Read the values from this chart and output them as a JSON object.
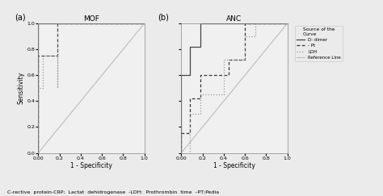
{
  "fig_width": 4.74,
  "fig_height": 2.43,
  "dpi": 100,
  "background_color": "#ebebeb",
  "plot_bg_color": "#f0f0f0",
  "panel_a_title": "MOF",
  "panel_b_title": "ANC",
  "xlabel": "1 - Specificity",
  "ylabel": "Sensitivity",
  "panel_label_a": "(a)",
  "panel_label_b": "(b)",
  "legend_title": "Source of the\nCurve",
  "legend_entries": [
    "D- dimer",
    "- Pt",
    "LDH",
    "Reference Line"
  ],
  "mof_d_dimer_fpr": [
    0.0,
    0.0,
    0.04,
    0.04,
    1.0
  ],
  "mof_d_dimer_tpr": [
    0.0,
    1.0,
    1.0,
    1.0,
    1.0
  ],
  "mof_pt_fpr": [
    0.0,
    0.0,
    0.0,
    0.04,
    0.04,
    0.18,
    0.18,
    1.0
  ],
  "mof_pt_tpr": [
    0.0,
    0.5,
    0.75,
    0.75,
    0.75,
    0.75,
    1.0,
    1.0
  ],
  "mof_ldh_fpr": [
    0.0,
    0.0,
    0.04,
    0.04,
    0.18,
    0.18,
    0.18,
    1.0
  ],
  "mof_ldh_tpr": [
    0.0,
    0.5,
    0.5,
    0.75,
    0.75,
    0.5,
    1.0,
    1.0
  ],
  "anc_d_dimer_fpr": [
    0.0,
    0.0,
    0.0,
    0.08,
    0.08,
    0.18,
    0.18,
    1.0
  ],
  "anc_d_dimer_tpr": [
    0.0,
    0.15,
    0.6,
    0.6,
    0.82,
    0.82,
    1.0,
    1.0
  ],
  "anc_pt_fpr": [
    0.0,
    0.0,
    0.08,
    0.08,
    0.18,
    0.18,
    0.45,
    0.45,
    0.6,
    0.6,
    1.0
  ],
  "anc_pt_tpr": [
    0.0,
    0.15,
    0.15,
    0.42,
    0.42,
    0.6,
    0.6,
    0.72,
    0.72,
    1.0,
    1.0
  ],
  "anc_ldh_fpr": [
    0.0,
    0.08,
    0.08,
    0.18,
    0.18,
    0.4,
    0.4,
    0.6,
    0.6,
    0.7,
    0.7,
    1.0
  ],
  "anc_ldh_tpr": [
    0.0,
    0.0,
    0.3,
    0.3,
    0.45,
    0.45,
    0.72,
    0.72,
    0.9,
    0.9,
    1.0,
    1.0
  ],
  "ref_fpr": [
    0.0,
    1.0
  ],
  "ref_tpr": [
    0.0,
    1.0
  ],
  "color_d_dimer": "#444444",
  "color_pt": "#333333",
  "color_ldh": "#999999",
  "color_ref": "#bbbbbb",
  "ls_d_dimer": "solid",
  "ls_pt": "dashed",
  "ls_ldh": "dotted",
  "ls_ref": "solid",
  "lw_main": 0.9,
  "lw_ref": 0.8,
  "tick_fontsize": 4.5,
  "label_fontsize": 5.5,
  "title_fontsize": 6.5,
  "panel_label_fontsize": 7,
  "legend_fontsize": 4.0,
  "legend_title_fontsize": 4.2,
  "xlim": [
    0.0,
    1.0
  ],
  "ylim": [
    0.0,
    1.0
  ],
  "xticks": [
    0.0,
    0.2,
    0.4,
    0.6,
    0.8,
    1.0
  ],
  "yticks": [
    0.0,
    0.2,
    0.4,
    0.6,
    0.8,
    1.0
  ],
  "caption": "C-rective  protein-CRP;  Lactat  dehidrogenase  -LDH:  Prothrombin  time  –PT;Pedia"
}
